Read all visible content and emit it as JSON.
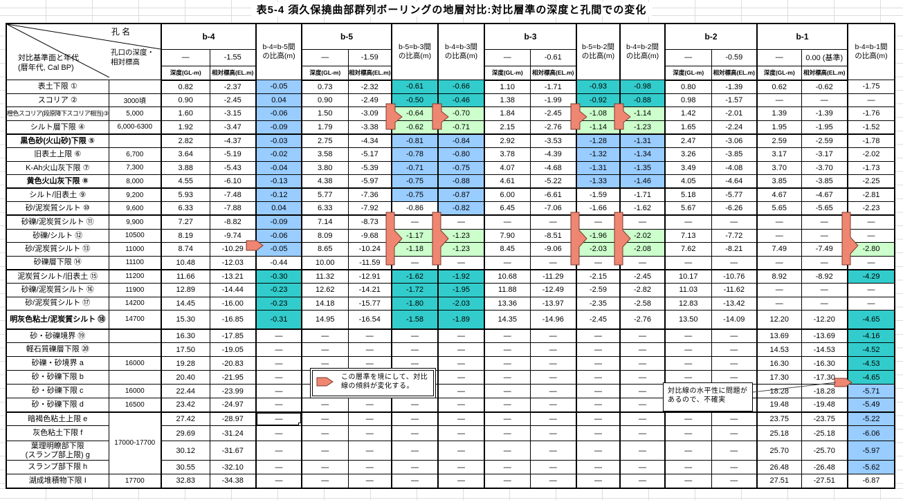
{
  "title": "表5-4 須久保撓曲部群列ボーリングの地層対比:対比層準の深度と孔間での変化",
  "colors": {
    "teal": "#33CCCC",
    "blue": "#99CCFF",
    "green": "#CCFFCC",
    "marker_fill": "#EE8672",
    "marker_stroke": "#7A3B2E"
  },
  "header": {
    "corner": {
      "hole_name": "孔 名",
      "mouth": "孔口の深度・\n相対標高",
      "datum": "対比基準面と年代\n(暦年代, Cal BP)"
    },
    "holes": [
      {
        "name": "b-4",
        "depth_top": "—",
        "elev_top": "-1.55"
      },
      {
        "name": "b-5",
        "depth_top": "—",
        "elev_top": "-1.59"
      },
      {
        "name": "b-3",
        "depth_top": "—",
        "elev_top": "-0.61"
      },
      {
        "name": "b-2",
        "depth_top": "—",
        "elev_top": "-0.59"
      },
      {
        "name": "b-1",
        "depth_top": "—",
        "elev_top": "0.00 (基準)"
      }
    ],
    "pairs": [
      {
        "label": "b-4=b-5間\nの比高(m)"
      },
      {
        "label": "b-5=b-3間\nの比高(m)"
      },
      {
        "label": "b-4=b-3間\nの比高(m)"
      },
      {
        "label": "b-5=b-2間\nの比高(m)"
      },
      {
        "label": "b-4=b-2間\nの比高(m)"
      },
      {
        "label": "b-4=b-1間\nの比高(m)"
      }
    ],
    "sub_depth": "深度(GL-m)",
    "sub_elev": "相対標高(EL.m)"
  },
  "notes": {
    "note1": "この層準を境にして、対比線の傾斜が変化する。",
    "note2": "対比線の水平性に問題があるので、不確実"
  },
  "selection": {
    "row": 25,
    "cell_index": 2
  },
  "rows": [
    {
      "label": "表土下限 ①",
      "age": "",
      "cells": [
        "0.82",
        "-2.37",
        "-0.05",
        "0.73",
        "-2.32",
        "-0.61",
        "-0.66",
        "1.10",
        "-1.71",
        "-0.93",
        "-0.98",
        "0.80",
        "-1.39",
        "0.62",
        "-0.62",
        "-1.75"
      ],
      "fills": [
        "b",
        "t",
        "t",
        "t",
        "t",
        "w"
      ]
    },
    {
      "label": "スコリア ②",
      "age": "3000頃",
      "cells": [
        "0.90",
        "-2.45",
        "0.04",
        "0.90",
        "-2.49",
        "-0.50",
        "-0.46",
        "1.38",
        "-1.99",
        "-0.92",
        "-0.88",
        "0.98",
        "-1.57",
        "—",
        "—",
        "—"
      ],
      "fills": [
        "b",
        "t",
        "t",
        "t",
        "t",
        "w"
      ]
    },
    {
      "label": "橙色スコリア(段原降下スコリア相当)③",
      "age": "5,000",
      "small": true,
      "cells": [
        "1.60",
        "-3.15",
        "-0.06",
        "1.50",
        "-3.09",
        "-0.64",
        "-0.70",
        "1.84",
        "-2.45",
        "-1.08",
        "-1.14",
        "1.42",
        "-2.01",
        "1.39",
        "-1.39",
        "-1.76"
      ],
      "fills": [
        "b",
        "g",
        "g",
        "g",
        "g",
        "w"
      ]
    },
    {
      "label": "シルト層下限 ④",
      "age": "6,000-6300",
      "sep": true,
      "cells": [
        "1.92",
        "-3.47",
        "-0.09",
        "1.79",
        "-3.38",
        "-0.62",
        "-0.71",
        "2.15",
        "-2.76",
        "-1.14",
        "-1.23",
        "1.65",
        "-2.24",
        "1.95",
        "-1.95",
        "-1.52"
      ],
      "fills": [
        "b",
        "g",
        "g",
        "g",
        "g",
        "w"
      ]
    },
    {
      "label": "黒色砂(火山砂)下限 ⑤",
      "age": "",
      "bold": true,
      "cells": [
        "2.82",
        "-4.37",
        "-0.03",
        "2.75",
        "-4.34",
        "-0.81",
        "-0.84",
        "2.92",
        "-3.53",
        "-1.28",
        "-1.31",
        "2.47",
        "-3.06",
        "2.59",
        "-2.59",
        "-1.78"
      ],
      "fills": [
        "b",
        "b",
        "b",
        "b",
        "b",
        "w"
      ]
    },
    {
      "label": "旧表土上限 ⑥",
      "age": "6,700",
      "cells": [
        "3.64",
        "-5.19",
        "-0.02",
        "3.58",
        "-5.17",
        "-0.78",
        "-0.80",
        "3.78",
        "-4.39",
        "-1.32",
        "-1.34",
        "3.26",
        "-3.85",
        "3.17",
        "-3.17",
        "-2.02"
      ],
      "fills": [
        "b",
        "b",
        "b",
        "b",
        "b",
        "w"
      ]
    },
    {
      "label": "K-Ah火山灰下限 ⑦",
      "age": "7,300",
      "cells": [
        "3.88",
        "-5.43",
        "-0.04",
        "3.80",
        "-5.39",
        "-0.71",
        "-0.75",
        "4.07",
        "-4.68",
        "-1.31",
        "-1.35",
        "3.49",
        "-4.08",
        "3.70",
        "-3.70",
        "-1.73"
      ],
      "fills": [
        "b",
        "b",
        "b",
        "b",
        "b",
        "w"
      ]
    },
    {
      "label": "黄色火山灰下限 ⑧",
      "age": "8,000",
      "bold": true,
      "sep": true,
      "cells": [
        "4.55",
        "-6.10",
        "-0.13",
        "4.38",
        "-5.97",
        "-0.75",
        "-0.88",
        "4.61",
        "-5.22",
        "-1.33",
        "-1.46",
        "4.05",
        "-4.64",
        "3.85",
        "-3.85",
        "-2.25"
      ],
      "fills": [
        "b",
        "b",
        "b",
        "b",
        "b",
        "w"
      ]
    },
    {
      "label": "シルト/旧表土 ⑨",
      "age": "9,200",
      "cells": [
        "5.93",
        "-7.48",
        "-0.12",
        "5.77",
        "-7.36",
        "-0.75",
        "-0.87",
        "6.00",
        "-6.61",
        "-1.59",
        "-1.71",
        "5.18",
        "-5.77",
        "4.67",
        "-4.67",
        "-2.81"
      ],
      "fills": [
        "b",
        "b",
        "b",
        "w",
        "w",
        "w"
      ]
    },
    {
      "label": "砂/泥炭質シルト ⑩",
      "age": "9,600",
      "sep": true,
      "cells": [
        "6.33",
        "-7.88",
        "0.04",
        "6.33",
        "-7.92",
        "-0.86",
        "-0.82",
        "6.45",
        "-7.06",
        "-1.66",
        "-1.62",
        "5.67",
        "-6.26",
        "5.65",
        "-5.65",
        "-2.23"
      ],
      "fills": [
        "b",
        "w",
        "b",
        "w",
        "w",
        "w"
      ]
    },
    {
      "label": "砂礫/泥炭質シルト ⑪",
      "age": "9,900",
      "cells": [
        "7.27",
        "-8.82",
        "-0.09",
        "7.14",
        "-8.73",
        "—",
        "—",
        "—",
        "—",
        "—",
        "—",
        "—",
        "—",
        "—",
        "—",
        "—"
      ],
      "fills": [
        "b",
        "w",
        "w",
        "w",
        "w",
        "w"
      ]
    },
    {
      "label": "砂礫/シルト ⑫",
      "age": "10500",
      "cells": [
        "8.19",
        "-9.74",
        "-0.06",
        "8.09",
        "-9.68",
        "-1.17",
        "-1.23",
        "7.90",
        "-8.51",
        "-1.96",
        "-2.02",
        "7.13",
        "-7.72",
        "—",
        "—",
        "—"
      ],
      "fills": [
        "b",
        "g",
        "g",
        "g",
        "g",
        "w"
      ]
    },
    {
      "label": "砂/泥炭質シルト ⑬",
      "age": "11000",
      "cells": [
        "8.74",
        "-10.29",
        "-0.05",
        "8.65",
        "-10.24",
        "-1.18",
        "-1.23",
        "8.45",
        "-9.06",
        "-2.03",
        "-2.08",
        "7.62",
        "-8.21",
        "7.49",
        "-7.49",
        "-2.80"
      ],
      "fills": [
        "b",
        "g",
        "g",
        "g",
        "g",
        "g"
      ]
    },
    {
      "label": "砂礫層下限 ⑭",
      "age": "11100",
      "sep": true,
      "cells": [
        "10.48",
        "-12.03",
        "-0.44",
        "10.00",
        "-11.59",
        "—",
        "—",
        "—",
        "—",
        "—",
        "—",
        "—",
        "—",
        "—",
        "—",
        "—"
      ],
      "fills": [
        "w",
        "w",
        "w",
        "w",
        "w",
        "w"
      ]
    },
    {
      "label": "泥炭質シルト/旧表土 ⑮",
      "age": "11200",
      "cells": [
        "11.66",
        "-13.21",
        "-0.30",
        "11.32",
        "-12.91",
        "-1.62",
        "-1.92",
        "10.68",
        "-11.29",
        "-2.15",
        "-2.45",
        "10.17",
        "-10.76",
        "8.92",
        "-8.92",
        "-4.29"
      ],
      "fills": [
        "t",
        "t",
        "t",
        "w",
        "w",
        "t"
      ]
    },
    {
      "label": "砂礫/泥炭質シルト ⑯",
      "age": "11900",
      "cells": [
        "12.89",
        "-14.44",
        "-0.23",
        "12.62",
        "-14.21",
        "-1.72",
        "-1.95",
        "11.88",
        "-12.49",
        "-2.59",
        "-2.82",
        "11.03",
        "-11.62",
        "—",
        "—",
        "—"
      ],
      "fills": [
        "t",
        "t",
        "t",
        "w",
        "w",
        "w"
      ]
    },
    {
      "label": "砂/泥炭質シルト ⑰",
      "age": "14200",
      "cells": [
        "14.45",
        "-16.00",
        "-0.23",
        "14.18",
        "-15.77",
        "-1.80",
        "-2.03",
        "13.36",
        "-13.97",
        "-2.35",
        "-2.58",
        "12.83",
        "-13.42",
        "—",
        "—",
        "—"
      ],
      "fills": [
        "t",
        "t",
        "t",
        "w",
        "w",
        "w"
      ]
    },
    {
      "label": "明灰色粘土/泥炭質シルト ⑱",
      "age": "14700",
      "bold": true,
      "sep": true,
      "cells": [
        "15.30",
        "-16.85",
        "-0.31",
        "14.95",
        "-16.54",
        "-1.58",
        "-1.89",
        "14.35",
        "-14.96",
        "-2.45",
        "-2.76",
        "13.50",
        "-14.09",
        "12.20",
        "-12.20",
        "-4.65"
      ],
      "fills": [
        "t",
        "t",
        "t",
        "w",
        "w",
        "t"
      ]
    },
    {
      "label": "砂・砂礫境界 ⑲",
      "age": "",
      "cells": [
        "16.30",
        "-17.85",
        "—",
        "—",
        "—",
        "—",
        "—",
        "—",
        "—",
        "—",
        "—",
        "—",
        "—",
        "13.69",
        "-13.69",
        "-4.16"
      ],
      "fills": [
        "w",
        "w",
        "w",
        "w",
        "w",
        "t"
      ]
    },
    {
      "label": "軽石質礫層下限 ⑳",
      "age": "",
      "cells": [
        "17.50",
        "-19.05",
        "—",
        "—",
        "—",
        "—",
        "—",
        "—",
        "—",
        "—",
        "—",
        "—",
        "—",
        "14.53",
        "-14.53",
        "-4.52"
      ],
      "fills": [
        "w",
        "w",
        "w",
        "w",
        "w",
        "t"
      ]
    },
    {
      "label": "砂礫・砂境界 a",
      "age": "16000",
      "cells": [
        "19.28",
        "-20.83",
        "—",
        "—",
        "—",
        "—",
        "—",
        "—",
        "—",
        "—",
        "—",
        "—",
        "—",
        "16.30",
        "-16.30",
        "-4.53"
      ],
      "fills": [
        "w",
        "w",
        "w",
        "w",
        "w",
        "t"
      ]
    },
    {
      "label": "砂・砂礫下限 b",
      "age": "",
      "cells": [
        "20.40",
        "-21.95",
        "—",
        "",
        "",
        "",
        "—",
        "—",
        "—",
        "—",
        "—",
        "—",
        "—",
        "17.30",
        "-17.30",
        "-4.65"
      ],
      "fills": [
        "w",
        "w",
        "w",
        "w",
        "w",
        "t"
      ]
    },
    {
      "label": "砂・砂礫下限 c",
      "age": "16000",
      "cells": [
        "22.44",
        "-23.99",
        "—",
        "",
        "",
        "",
        "—",
        "—",
        "—",
        "—",
        "—",
        "",
        "",
        "18.28",
        "-18.28",
        "-5.71"
      ],
      "fills": [
        "w",
        "w",
        "w",
        "w",
        "w",
        "b"
      ]
    },
    {
      "label": "砂・砂礫下限 d",
      "age": "16500",
      "sep": true,
      "cells": [
        "23.42",
        "-24.97",
        "—",
        "—",
        "—",
        "—",
        "—",
        "—",
        "—",
        "—",
        "—",
        "",
        "",
        "19.48",
        "-19.48",
        "-5.49"
      ],
      "fills": [
        "w",
        "w",
        "w",
        "w",
        "w",
        "b"
      ]
    },
    {
      "label": "暗褐色粘土上限 e",
      "age": "17000-17700",
      "age_rowspan": 4,
      "cells": [
        "27.42",
        "-28.97",
        "—",
        "—",
        "—",
        "—",
        "—",
        "—",
        "—",
        "—",
        "—",
        "—",
        "—",
        "23.75",
        "-23.75",
        "-5.22"
      ],
      "fills": [
        "w",
        "w",
        "w",
        "w",
        "w",
        "b"
      ]
    },
    {
      "label": "灰色粘土下限 f",
      "age_skip": true,
      "cells": [
        "29.69",
        "-31.24",
        "—",
        "—",
        "—",
        "—",
        "—",
        "—",
        "—",
        "—",
        "—",
        "—",
        "—",
        "25.18",
        "-25.18",
        "-6.06"
      ],
      "fills": [
        "w",
        "w",
        "w",
        "w",
        "w",
        "b"
      ]
    },
    {
      "label": "葉理明瞭部下限\n(スランプ部上限) g",
      "age_skip": true,
      "cells": [
        "30.12",
        "-31.67",
        "—",
        "—",
        "—",
        "—",
        "—",
        "—",
        "—",
        "—",
        "—",
        "—",
        "—",
        "25.70",
        "-25.70",
        "-5.97"
      ],
      "fills": [
        "w",
        "w",
        "w",
        "w",
        "w",
        "b"
      ]
    },
    {
      "label": "スランプ部下限 h",
      "age_skip": true,
      "cells": [
        "30.55",
        "-32.10",
        "—",
        "—",
        "—",
        "—",
        "—",
        "—",
        "—",
        "—",
        "—",
        "—",
        "—",
        "26.48",
        "-26.48",
        "-5.62"
      ],
      "fills": [
        "w",
        "w",
        "w",
        "w",
        "w",
        "b"
      ]
    },
    {
      "label": "湖成堆積物下限 I",
      "age": "17700",
      "cells": [
        "32.83",
        "-34.38",
        "—",
        "—",
        "—",
        "—",
        "—",
        "—",
        "—",
        "—",
        "—",
        "—",
        "—",
        "27.51",
        "-27.51",
        "-6.87"
      ],
      "fills": [
        "w",
        "w",
        "w",
        "w",
        "w",
        "w"
      ]
    }
  ]
}
